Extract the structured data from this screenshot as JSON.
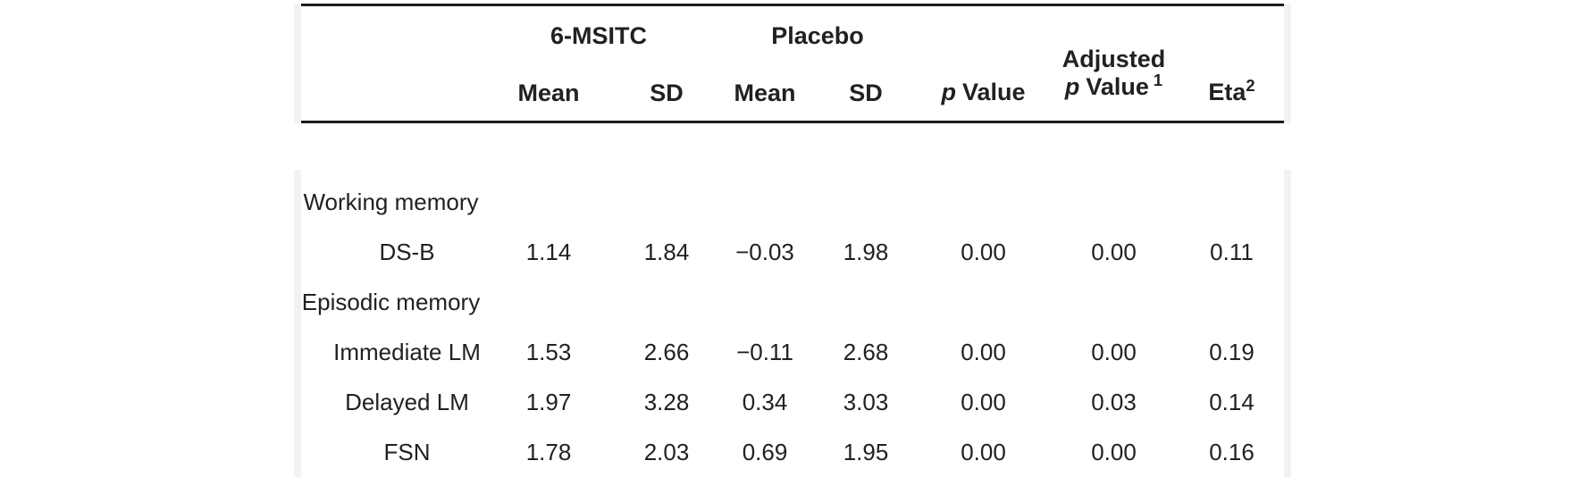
{
  "table": {
    "header": {
      "group_msitc": "6-MSITC",
      "group_placebo": "Placebo",
      "col_mean": "Mean",
      "col_sd": "SD",
      "p_italic": "p",
      "p_word": "Value",
      "adjusted_line1": "Adjusted",
      "adjusted_sup": "1",
      "eta_label": "Eta",
      "eta_sup": "2"
    },
    "rows": [
      {
        "type": "section",
        "label": "Working memory",
        "values": [
          "",
          "",
          "",
          "",
          "",
          "",
          ""
        ]
      },
      {
        "type": "item",
        "label": "DS-B",
        "values": [
          "1.14",
          "1.84",
          "−0.03",
          "1.98",
          "0.00",
          "0.00",
          "0.11"
        ]
      },
      {
        "type": "section",
        "label": "Episodic memory",
        "values": [
          "",
          "",
          "",
          "",
          "",
          "",
          ""
        ]
      },
      {
        "type": "item",
        "label": "Immediate LM",
        "values": [
          "1.53",
          "2.66",
          "−0.11",
          "2.68",
          "0.00",
          "0.00",
          "0.19"
        ]
      },
      {
        "type": "item",
        "label": "Delayed LM",
        "values": [
          "1.97",
          "3.28",
          "0.34",
          "3.03",
          "0.00",
          "0.03",
          "0.14"
        ]
      },
      {
        "type": "item",
        "label": "FSN",
        "values": [
          "1.78",
          "2.03",
          "0.69",
          "1.95",
          "0.00",
          "0.00",
          "0.16"
        ]
      }
    ]
  },
  "colors": {
    "text": "#212121",
    "rule_dark": "#1b1b1b",
    "rule_light": "#f2f2f2",
    "background": "#ffffff"
  }
}
